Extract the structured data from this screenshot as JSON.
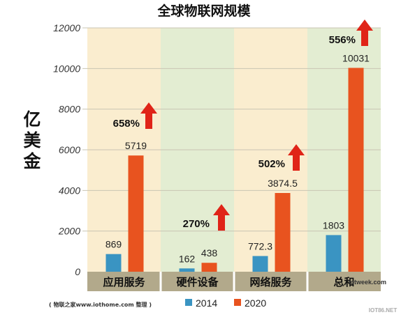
{
  "chart_data": {
    "type": "bar",
    "title": "全球物联网规模",
    "ylabel": "亿美金",
    "ylim": [
      0,
      12000
    ],
    "yticks": [
      0,
      2000,
      4000,
      6000,
      8000,
      10000,
      12000
    ],
    "categories": [
      "应用服务",
      "硬件设备",
      "网络服务",
      "总和"
    ],
    "series": [
      {
        "name": "2014",
        "color": "#3a94c2",
        "values": [
          869,
          162,
          772.3,
          1803
        ],
        "labels": [
          "869",
          "162",
          "772.3",
          "1803"
        ]
      },
      {
        "name": "2020",
        "color": "#e8531f",
        "values": [
          5719,
          438,
          3874.5,
          10031
        ],
        "labels": [
          "5719",
          "438",
          "3874.5",
          "10031"
        ]
      }
    ],
    "growth_labels": [
      "658%",
      "270%",
      "502%",
      "556%"
    ],
    "growth_arrow_color": "#e02418",
    "panel_colors": [
      "#faedcf",
      "#e3edd2",
      "#faedcf",
      "#e3edd2"
    ],
    "category_band_color": "#b2a98b"
  },
  "source_note": "( 物联之家www.iothome.com 整理 )",
  "watermarks": [
    "iotweek.com",
    "IOT86.NET"
  ]
}
